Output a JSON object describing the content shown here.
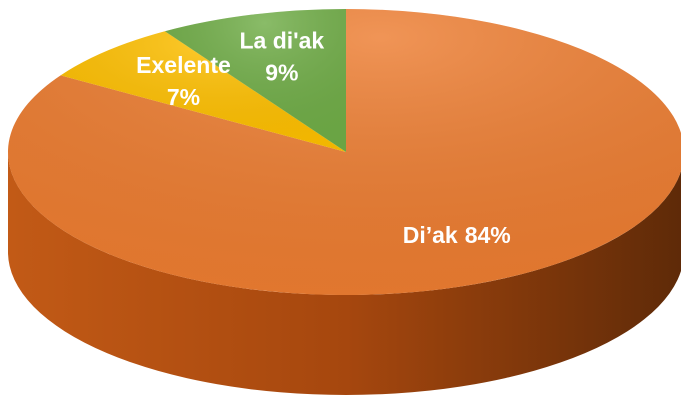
{
  "chart_data": {
    "type": "pie3d",
    "categories": [
      "Di’ak",
      "Exelente",
      "La di'ak"
    ],
    "values": [
      84,
      7,
      9
    ],
    "value_labels": [
      "84%",
      "7%",
      "9%"
    ],
    "colors": [
      "#ED7D31",
      "#FFC000",
      "#70AD47"
    ]
  }
}
